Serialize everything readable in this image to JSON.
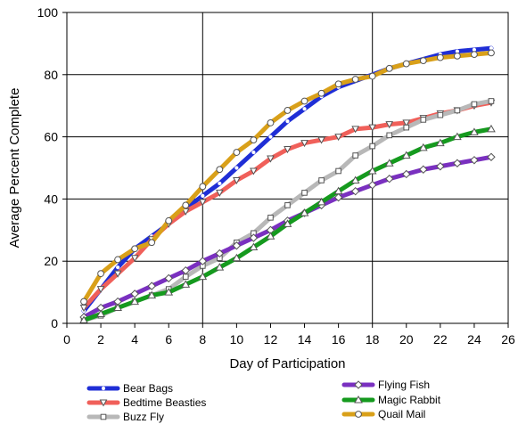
{
  "chart_data": {
    "type": "line",
    "xlabel": "Day of Participation",
    "ylabel": "Average Percent Complete",
    "xlim": [
      0,
      26
    ],
    "ylim": [
      0,
      100
    ],
    "x_ticks": [
      0,
      2,
      4,
      6,
      8,
      10,
      12,
      14,
      16,
      18,
      20,
      22,
      24,
      26
    ],
    "y_ticks": [
      0,
      20,
      40,
      60,
      80,
      100
    ],
    "grid": "vertical lines at x=8 and x=18; horizontal lines at y=20,40,60,80",
    "legend_position": "bottom",
    "x": [
      1,
      2,
      3,
      4,
      5,
      6,
      7,
      8,
      9,
      10,
      11,
      12,
      13,
      14,
      15,
      16,
      17,
      18,
      19,
      20,
      21,
      22,
      23,
      24,
      25
    ],
    "series": [
      {
        "name": "Bear Bags",
        "color": "#1f2ed6",
        "marker": "dot",
        "values": [
          4,
          11,
          18,
          24,
          28,
          32,
          37,
          41,
          45,
          50,
          55,
          60,
          65,
          69,
          73,
          76,
          78,
          80,
          82,
          83.5,
          85,
          86.5,
          87.5,
          88,
          88.5
        ]
      },
      {
        "name": "Bedtime Beasties",
        "color": "#f0605a",
        "marker": "triangle-down",
        "values": [
          5,
          11,
          16,
          21,
          27,
          32,
          36,
          39,
          42,
          46,
          49,
          53,
          56,
          58,
          59,
          60,
          62.5,
          63,
          64,
          64.5,
          66,
          67.5,
          68.5,
          70,
          71
        ]
      },
      {
        "name": "Buzz Fly",
        "color": "#b8b8b8",
        "marker": "square",
        "values": [
          1,
          2.5,
          5,
          7,
          9,
          11,
          15,
          18.5,
          21,
          26,
          29,
          34,
          38,
          42,
          46,
          49,
          54,
          57,
          60.5,
          63,
          65.5,
          67,
          68.5,
          70.5,
          71.5
        ]
      },
      {
        "name": "Flying Fish",
        "color": "#7a30c0",
        "marker": "diamond",
        "values": [
          2,
          5,
          7,
          9.5,
          12,
          14.5,
          17,
          20,
          22.5,
          25,
          27.5,
          30,
          33,
          35.5,
          38,
          40.5,
          42.5,
          44.5,
          46.5,
          48,
          49.5,
          50.5,
          51.5,
          52.5,
          53.5
        ]
      },
      {
        "name": "Magic Rabbit",
        "color": "#159a1e",
        "marker": "triangle-up",
        "values": [
          1,
          3,
          5,
          7,
          9,
          10,
          12.5,
          15,
          18,
          21,
          24.5,
          28,
          32,
          35.5,
          39,
          42.5,
          46,
          49,
          51.5,
          54,
          56.5,
          58,
          60,
          61.5,
          62.5
        ]
      },
      {
        "name": "Quail Mail",
        "color": "#d9a019",
        "marker": "circle",
        "values": [
          7,
          16,
          20.5,
          24,
          26,
          33,
          38,
          44,
          49.5,
          55,
          59,
          64.5,
          68.5,
          71.5,
          74,
          77,
          78.5,
          79.5,
          82,
          83.5,
          84.5,
          85.5,
          86,
          86.5,
          87
        ]
      }
    ]
  }
}
